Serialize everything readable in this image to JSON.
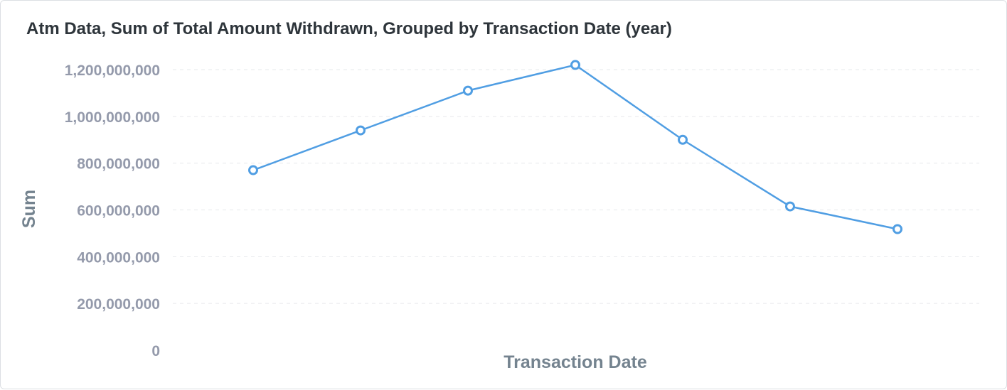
{
  "card": {
    "title": "Atm Data, Sum of Total Amount Withdrawn, Grouped by Transaction Date (year)"
  },
  "chart_data": {
    "type": "line",
    "title": "Atm Data, Sum of Total Amount Withdrawn, Grouped by Transaction Date (year)",
    "xlabel": "Transaction Date",
    "ylabel": "Sum",
    "ylim": [
      0,
      1200000000
    ],
    "yticks": [
      0,
      200000000,
      400000000,
      600000000,
      800000000,
      1000000000,
      1200000000
    ],
    "ytick_labels": [
      "0",
      "200,000,000",
      "400,000,000",
      "600,000,000",
      "800,000,000",
      "1,000,000,000",
      "1,200,000,000"
    ],
    "grid": true,
    "x_tick_labels_visible": false,
    "series": [
      {
        "values": [
          770000000,
          940000000,
          1110000000,
          1220000000,
          900000000,
          615000000,
          518000000
        ],
        "color": "#509ee3"
      }
    ]
  }
}
